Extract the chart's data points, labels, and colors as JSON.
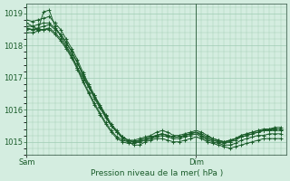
{
  "title": "",
  "xlabel": "Pression niveau de la mer( hPa )",
  "bg_color": "#d4ede0",
  "grid_color": "#a0ccb4",
  "line_color": "#1a5c2a",
  "ylim": [
    1014.6,
    1019.3
  ],
  "xlim": [
    0,
    46
  ],
  "sam_x": 0,
  "dim_x": 30,
  "ytick_positions": [
    1015,
    1016,
    1017,
    1018,
    1019
  ],
  "ytick_labels": [
    "1015",
    "1016",
    "1017",
    "1018",
    "1019"
  ],
  "series": [
    {
      "x": [
        0,
        1,
        2,
        3,
        4,
        5,
        6,
        7,
        8,
        9,
        10,
        11,
        12,
        13,
        14,
        15,
        16,
        17,
        18,
        19,
        20,
        21,
        22,
        23,
        24,
        25,
        26,
        27,
        28,
        29,
        30,
        31,
        32,
        33,
        34,
        35,
        36,
        37,
        38,
        39,
        40,
        41,
        42,
        43,
        44,
        45
      ],
      "y": [
        1018.7,
        1018.6,
        1018.5,
        1019.05,
        1019.1,
        1018.6,
        1018.3,
        1018.0,
        1017.7,
        1017.3,
        1017.0,
        1016.7,
        1016.4,
        1016.1,
        1015.8,
        1015.5,
        1015.3,
        1015.1,
        1015.0,
        1014.9,
        1014.9,
        1015.0,
        1015.05,
        1015.1,
        1015.1,
        1015.05,
        1015.0,
        1015.0,
        1015.05,
        1015.1,
        1015.15,
        1015.1,
        1015.0,
        1014.95,
        1014.9,
        1014.85,
        1014.8,
        1014.85,
        1014.9,
        1014.95,
        1015.0,
        1015.05,
        1015.1,
        1015.1,
        1015.1,
        1015.1
      ]
    },
    {
      "x": [
        0,
        1,
        2,
        3,
        4,
        5,
        6,
        7,
        8,
        9,
        10,
        11,
        12,
        13,
        14,
        15,
        16,
        17,
        18,
        19,
        20,
        21,
        22,
        23,
        24,
        25,
        26,
        27,
        28,
        29,
        30,
        31,
        32,
        33,
        34,
        35,
        36,
        37,
        38,
        39,
        40,
        41,
        42,
        43,
        44,
        45
      ],
      "y": [
        1018.5,
        1018.5,
        1018.55,
        1018.6,
        1018.65,
        1018.5,
        1018.35,
        1018.1,
        1017.8,
        1017.45,
        1017.1,
        1016.75,
        1016.45,
        1016.15,
        1015.85,
        1015.55,
        1015.35,
        1015.15,
        1015.05,
        1015.0,
        1015.0,
        1015.05,
        1015.1,
        1015.2,
        1015.25,
        1015.2,
        1015.15,
        1015.15,
        1015.2,
        1015.25,
        1015.3,
        1015.2,
        1015.1,
        1015.05,
        1015.0,
        1015.0,
        1015.05,
        1015.1,
        1015.15,
        1015.2,
        1015.25,
        1015.3,
        1015.35,
        1015.35,
        1015.35,
        1015.35
      ]
    },
    {
      "x": [
        0,
        1,
        2,
        3,
        4,
        5,
        6,
        7,
        8,
        9,
        10,
        11,
        12,
        13,
        14,
        15,
        16,
        17,
        18,
        19,
        20,
        21,
        22,
        23,
        24,
        25,
        26,
        27,
        28,
        29,
        30,
        31,
        32,
        33,
        34,
        35,
        36,
        37,
        38,
        39,
        40,
        41,
        42,
        43,
        44,
        45
      ],
      "y": [
        1018.55,
        1018.5,
        1018.5,
        1018.5,
        1018.55,
        1018.4,
        1018.2,
        1017.95,
        1017.65,
        1017.3,
        1016.9,
        1016.55,
        1016.2,
        1015.9,
        1015.6,
        1015.35,
        1015.15,
        1015.05,
        1015.0,
        1015.0,
        1015.05,
        1015.1,
        1015.15,
        1015.2,
        1015.25,
        1015.2,
        1015.15,
        1015.15,
        1015.2,
        1015.25,
        1015.3,
        1015.25,
        1015.15,
        1015.1,
        1015.05,
        1015.0,
        1015.05,
        1015.1,
        1015.2,
        1015.25,
        1015.3,
        1015.35,
        1015.35,
        1015.4,
        1015.4,
        1015.4
      ]
    },
    {
      "x": [
        0,
        1,
        2,
        3,
        4,
        5,
        6,
        7,
        8,
        9,
        10,
        11,
        12,
        13,
        14,
        15,
        16,
        17,
        18,
        19,
        20,
        21,
        22,
        23,
        24,
        25,
        26,
        27,
        28,
        29,
        30,
        31,
        32,
        33,
        34,
        35,
        36,
        37,
        38,
        39,
        40,
        41,
        42,
        43,
        44,
        45
      ],
      "y": [
        1018.4,
        1018.4,
        1018.45,
        1018.5,
        1018.5,
        1018.35,
        1018.15,
        1017.9,
        1017.6,
        1017.25,
        1016.85,
        1016.5,
        1016.15,
        1015.85,
        1015.55,
        1015.3,
        1015.1,
        1015.0,
        1014.95,
        1014.95,
        1015.0,
        1015.05,
        1015.1,
        1015.15,
        1015.2,
        1015.15,
        1015.1,
        1015.1,
        1015.15,
        1015.2,
        1015.25,
        1015.15,
        1015.05,
        1015.0,
        1014.95,
        1014.9,
        1014.9,
        1014.95,
        1015.05,
        1015.1,
        1015.15,
        1015.2,
        1015.2,
        1015.25,
        1015.25,
        1015.25
      ]
    },
    {
      "x": [
        0,
        1,
        2,
        3,
        4,
        5,
        6,
        7,
        8,
        9,
        10,
        11,
        12,
        13,
        14,
        15,
        16,
        17,
        18,
        19,
        20,
        21,
        22,
        23,
        24,
        25,
        26,
        27,
        28,
        29,
        30,
        31,
        32,
        33,
        34,
        35,
        36,
        37,
        38,
        39,
        40,
        41,
        42,
        43,
        44,
        45
      ],
      "y": [
        1018.6,
        1018.6,
        1018.65,
        1018.7,
        1018.7,
        1018.55,
        1018.35,
        1018.1,
        1017.8,
        1017.45,
        1017.05,
        1016.7,
        1016.35,
        1016.05,
        1015.75,
        1015.5,
        1015.3,
        1015.15,
        1015.05,
        1015.0,
        1015.05,
        1015.1,
        1015.15,
        1015.2,
        1015.25,
        1015.2,
        1015.15,
        1015.15,
        1015.2,
        1015.25,
        1015.3,
        1015.2,
        1015.1,
        1015.05,
        1015.0,
        1014.95,
        1015.0,
        1015.05,
        1015.15,
        1015.2,
        1015.25,
        1015.3,
        1015.35,
        1015.35,
        1015.4,
        1015.4
      ]
    },
    {
      "x": [
        0,
        1,
        2,
        3,
        4,
        5,
        6,
        7,
        8,
        9,
        10,
        11,
        12,
        13,
        14,
        15,
        16,
        17,
        18,
        19,
        20,
        21,
        22,
        23,
        24,
        25,
        26,
        27,
        28,
        29,
        30,
        31,
        32,
        33,
        34,
        35,
        36,
        37,
        38,
        39,
        40,
        41,
        42,
        43,
        44,
        45
      ],
      "y": [
        1018.8,
        1018.75,
        1018.8,
        1018.85,
        1018.9,
        1018.7,
        1018.5,
        1018.2,
        1017.9,
        1017.55,
        1017.15,
        1016.8,
        1016.45,
        1016.1,
        1015.8,
        1015.5,
        1015.3,
        1015.15,
        1015.05,
        1015.05,
        1015.1,
        1015.15,
        1015.2,
        1015.3,
        1015.35,
        1015.3,
        1015.2,
        1015.2,
        1015.25,
        1015.3,
        1015.35,
        1015.3,
        1015.2,
        1015.1,
        1015.05,
        1015.0,
        1015.0,
        1015.1,
        1015.2,
        1015.25,
        1015.3,
        1015.35,
        1015.4,
        1015.4,
        1015.45,
        1015.45
      ]
    }
  ]
}
